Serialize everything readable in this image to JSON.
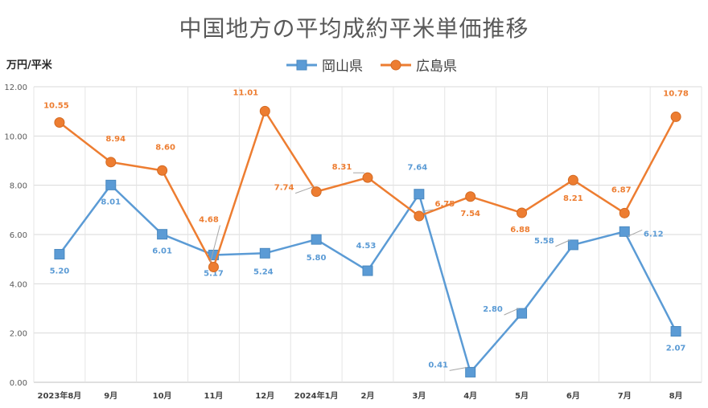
{
  "chart_data": {
    "type": "line",
    "title": "中国地方の平均成約平米単価推移",
    "ylabel": "万円/平米",
    "xlabel": "",
    "categories": [
      "2023年8月",
      "9月",
      "10月",
      "11月",
      "12月",
      "2024年1月",
      "2月",
      "3月",
      "4月",
      "5月",
      "6月",
      "7月",
      "8月"
    ],
    "ylim": [
      0,
      12
    ],
    "yticks": [
      "0.00",
      "2.00",
      "4.00",
      "6.00",
      "8.00",
      "10.00",
      "12.00"
    ],
    "grid": true,
    "legend_position": "top",
    "series": [
      {
        "name": "岡山県",
        "color": "#5B9BD5",
        "marker": "square",
        "values": [
          5.2,
          8.01,
          6.01,
          5.17,
          5.24,
          5.8,
          4.53,
          7.64,
          0.41,
          2.8,
          5.58,
          6.12,
          2.07
        ],
        "labels": [
          "5.20",
          "8.01",
          "6.01",
          "5.17",
          "5.24",
          "5.80",
          "4.53",
          "7.64",
          "0.41",
          "2.80",
          "5.58",
          "6.12",
          "2.07"
        ]
      },
      {
        "name": "広島県",
        "color": "#ED7D31",
        "marker": "circle",
        "values": [
          10.55,
          8.94,
          8.6,
          4.68,
          11.01,
          7.74,
          8.31,
          6.75,
          7.54,
          6.88,
          8.21,
          6.87,
          10.78
        ],
        "labels": [
          "10.55",
          "8.94",
          "8.60",
          "4.68",
          "11.01",
          "7.74",
          "8.31",
          "6.75",
          "7.54",
          "6.88",
          "8.21",
          "6.87",
          "10.78"
        ]
      }
    ]
  }
}
